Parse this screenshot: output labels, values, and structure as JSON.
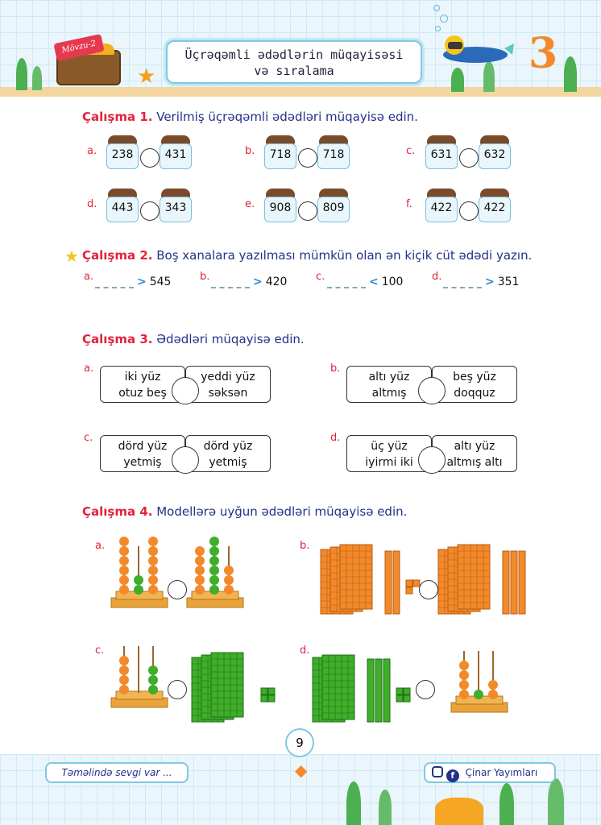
{
  "header": {
    "badge": "Mövzu-2",
    "title_line1": "Üçrəqəmli ədədlərin müqayisəsi",
    "title_line2": "və sıralama",
    "corner_digit": "3"
  },
  "ex1": {
    "label": "Çalışma 1.",
    "text": "Verilmiş üçrəqəmli ədədləri müqayisə edin.",
    "items": [
      {
        "letter": "a.",
        "left": "238",
        "right": "431"
      },
      {
        "letter": "b.",
        "left": "718",
        "right": "718"
      },
      {
        "letter": "c.",
        "left": "631",
        "right": "632"
      },
      {
        "letter": "d.",
        "left": "443",
        "right": "343"
      },
      {
        "letter": "e.",
        "left": "908",
        "right": "809"
      },
      {
        "letter": "f.",
        "left": "422",
        "right": "422"
      }
    ]
  },
  "ex2": {
    "label": "Çalışma 2.",
    "text": "Boş xanalara yazılması mümkün olan ən kiçik cüt ədədi yazın.",
    "items": [
      {
        "letter": "a.",
        "op": ">",
        "value": "545"
      },
      {
        "letter": "b.",
        "op": ">",
        "value": "420"
      },
      {
        "letter": "c.",
        "op": "<",
        "value": "100"
      },
      {
        "letter": "d.",
        "op": ">",
        "value": "351"
      }
    ]
  },
  "ex3": {
    "label": "Çalışma 3.",
    "text": "Ədədləri müqayisə edin.",
    "items": [
      {
        "letter": "a.",
        "left1": "iki yüz",
        "left2": "otuz beş",
        "right1": "yeddi yüz",
        "right2": "səksən"
      },
      {
        "letter": "b.",
        "left1": "altı yüz",
        "left2": "altmış",
        "right1": "beş yüz",
        "right2": "doqquz"
      },
      {
        "letter": "c.",
        "left1": "dörd yüz",
        "left2": "yetmiş",
        "right1": "dörd yüz",
        "right2": "yetmiş"
      },
      {
        "letter": "d.",
        "left1": "üç yüz",
        "left2": "iyirmi iki",
        "right1": "altı yüz",
        "right2": "altmış altı"
      }
    ]
  },
  "ex4": {
    "label": "Çalışma 4.",
    "text": "Modellərə uyğun ədədləri müqayisə edin.",
    "letters": [
      "a.",
      "b.",
      "c.",
      "d."
    ]
  },
  "footer": {
    "page": "9",
    "slogan": "Təməlində sevgi var ...",
    "publisher": "Çinar Yayımları"
  },
  "colors": {
    "accent_red": "#e2233c",
    "text_blue": "#23318a",
    "orange": "#f28a2c",
    "green": "#3fae2a"
  }
}
